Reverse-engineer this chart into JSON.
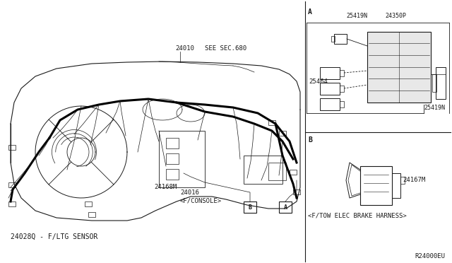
{
  "bg_color": "#ffffff",
  "line_color": "#1a1a1a",
  "thick_wire_color": "#000000",
  "labels": {
    "label_24010": "24010",
    "see_sec": "SEE SEC.680",
    "label_24168M": "24168M",
    "label_24016": "24016\n<F/CONSOLE>",
    "label_bottom": "24028Q - F/LTG SENSOR",
    "label_A_top": "A",
    "label_B": "B",
    "label_A_box": "A",
    "label_B_box": "B",
    "part_25419N_top": "25419N",
    "part_24350P": "24350P",
    "part_25464": "25464",
    "part_25419N_bot": "25419N",
    "part_24167M": "24167M",
    "ftow": "<F/TOW ELEC BRAKE HARNESS>",
    "ref_code": "R24000EU"
  },
  "figsize": [
    6.4,
    3.72
  ],
  "dpi": 100
}
